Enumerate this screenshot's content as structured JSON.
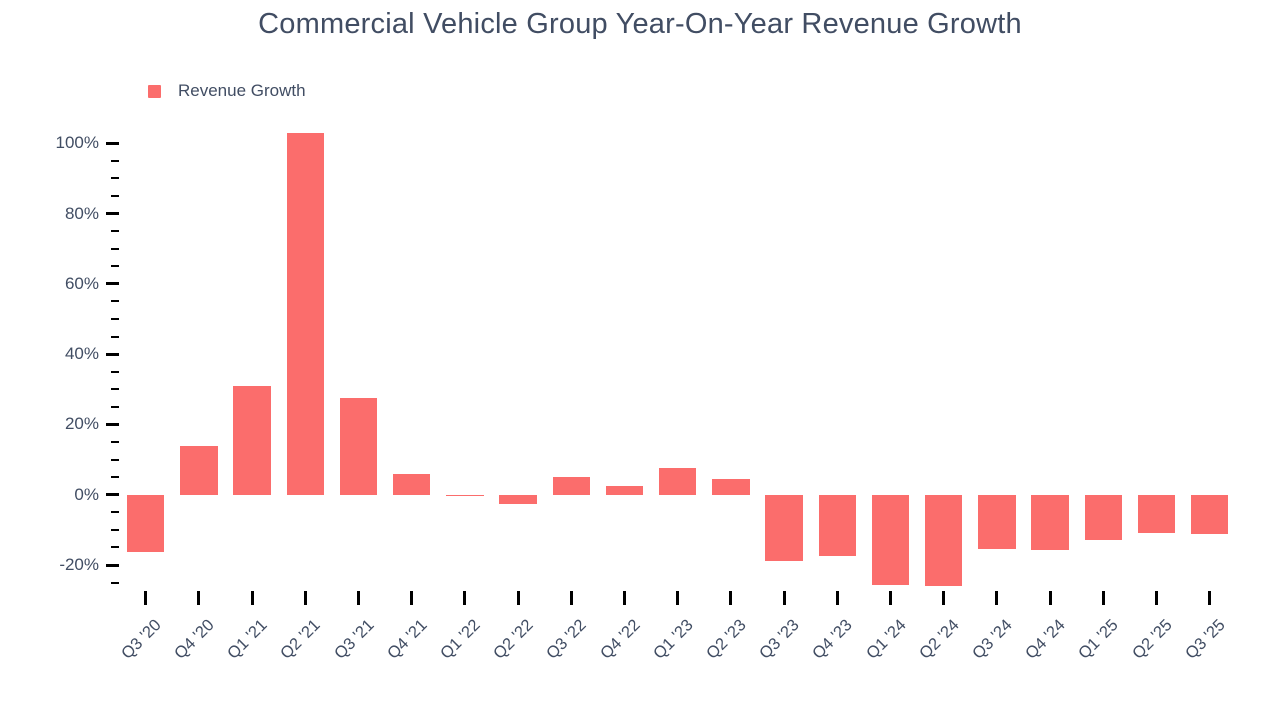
{
  "chart_data": {
    "type": "bar",
    "title": "Commercial Vehicle Group Year-On-Year Revenue Growth",
    "legend": [
      {
        "label": "Revenue Growth",
        "color": "#fb6d6c"
      }
    ],
    "categories": [
      "Q3 '20",
      "Q4 '20",
      "Q1 '21",
      "Q2 '21",
      "Q3 '21",
      "Q4 '21",
      "Q1 '22",
      "Q2 '22",
      "Q3 '22",
      "Q4 '22",
      "Q1 '23",
      "Q2 '23",
      "Q3 '23",
      "Q4 '23",
      "Q1 '24",
      "Q2 '24",
      "Q3 '24",
      "Q4 '24",
      "Q1 '25",
      "Q2 '25",
      "Q3 '25"
    ],
    "series": [
      {
        "name": "Revenue Growth",
        "values": [
          -16.4,
          13.8,
          30.9,
          102.9,
          27.6,
          5.8,
          -0.4,
          -2.6,
          5.1,
          2.5,
          7.5,
          4.4,
          -19.0,
          -17.4,
          -25.8,
          -26.1,
          -15.4,
          -15.7,
          -12.8,
          -11.0,
          -11.1
        ]
      }
    ],
    "value_unit": "%",
    "xlabel": "",
    "ylabel": "",
    "ylim": [
      -27,
      104
    ],
    "y_ticks_major": [
      100,
      80,
      60,
      40,
      20,
      0,
      -20
    ],
    "y_tick_labels": [
      "100%",
      "80%",
      "60%",
      "40%",
      "20%",
      "0%",
      "-20%"
    ],
    "y_minor_tick_step": 5,
    "y_minor_tick_range": [
      95,
      -25
    ],
    "grid": false,
    "legend_position": "top-left",
    "colors": {
      "bar": "#fb6d6c",
      "text": "#414d63",
      "tick": "#000000",
      "background": "#ffffff"
    }
  }
}
